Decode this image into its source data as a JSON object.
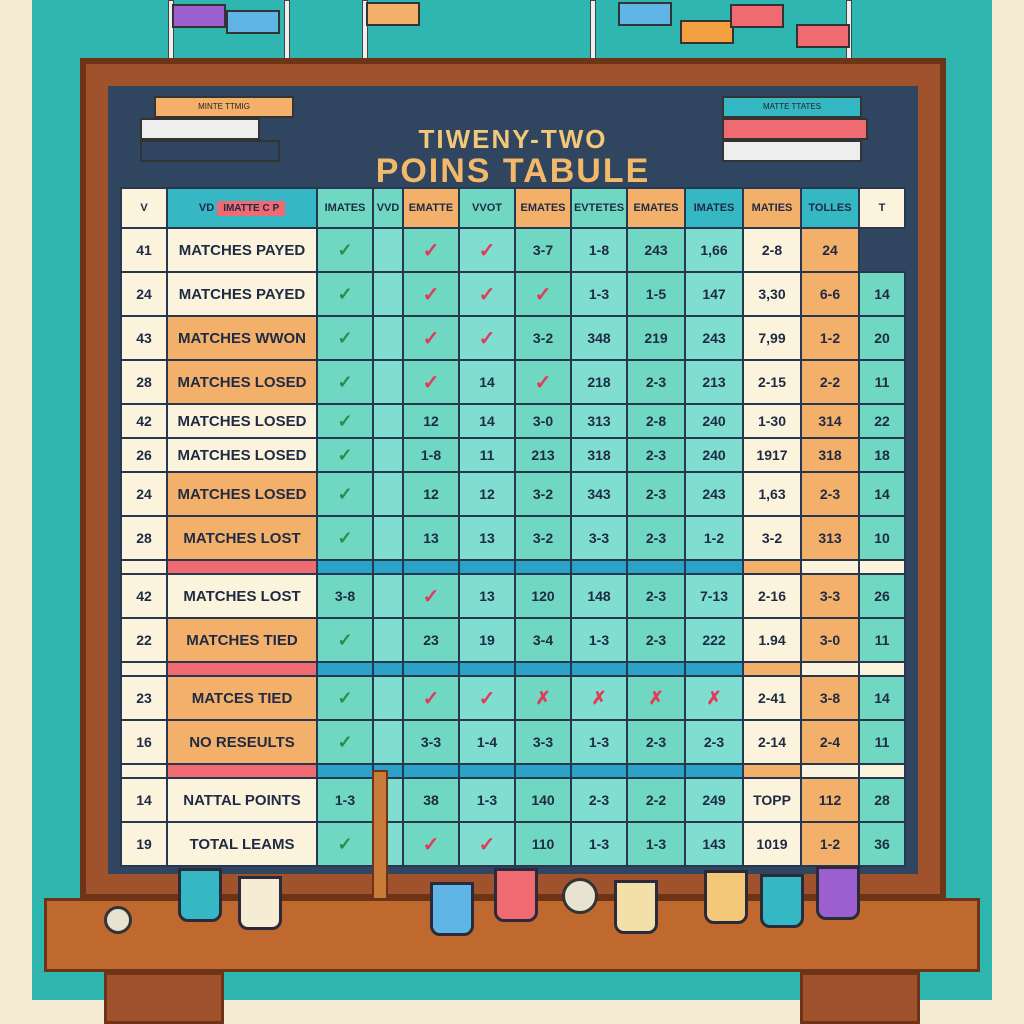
{
  "title": {
    "line1": "TIWENY-TWO",
    "line2": "POINS TABULE"
  },
  "headers": [
    "V",
    "VD",
    "IMATTE C P",
    "IMATES",
    "VVD",
    "EMATTE",
    "VVOT",
    "EMATES",
    "EVTETES",
    "EMATES",
    "IMATES",
    "MATIES",
    "TOLLES",
    "T"
  ],
  "rows": [
    {
      "n": "41",
      "label": "MATCHES PAYED",
      "cells": [
        "✓",
        "",
        "✓",
        "✓",
        "3-7",
        "1-8",
        "243",
        "1,66",
        "2-8",
        "24"
      ]
    },
    {
      "n": "24",
      "label": "MATCHES PAYED",
      "cells": [
        "✓",
        "",
        "✓",
        "✓",
        "✓",
        "1-3",
        "1-5",
        "147",
        "3,30",
        "6-6",
        "14"
      ]
    },
    {
      "n": "43",
      "label": "MATCHES WWON",
      "cells": [
        "✓",
        "",
        "✓",
        "✓",
        "3-2",
        "348",
        "219",
        "243",
        "7,99",
        "1-2",
        "20"
      ]
    },
    {
      "n": "28",
      "label": "MATCHES LOSED",
      "cells": [
        "✓",
        "",
        "✓",
        "14",
        "✓",
        "218",
        "2-3",
        "213",
        "2-15",
        "2-2",
        "11"
      ]
    },
    {
      "n": "42",
      "label": "MATCHES LOSED",
      "cells": [
        "✓",
        "",
        "12",
        "14",
        "3-0",
        "313",
        "2-8",
        "240",
        "1-30",
        "314",
        "22"
      ]
    },
    {
      "n": "26",
      "label": "MATCHES LOSED",
      "cells": [
        "✓",
        "",
        "1-8",
        "11",
        "213",
        "318",
        "2-3",
        "240",
        "1917",
        "318",
        "18"
      ]
    },
    {
      "n": "24",
      "label": "MATCHES LOSED",
      "cells": [
        "✓",
        "",
        "12",
        "12",
        "3-2",
        "343",
        "2-3",
        "243",
        "1,63",
        "2-3",
        "14"
      ]
    },
    {
      "n": "28",
      "label": "MATCHES LOST",
      "cells": [
        "✓",
        "",
        "13",
        "13",
        "3-2",
        "3-3",
        "2-3",
        "1-2",
        "3-2",
        "313",
        "10"
      ]
    },
    {
      "n": "42",
      "label": "MATCHES LOST",
      "cells": [
        "3-8",
        "",
        "✓",
        "13",
        "120",
        "148",
        "2-3",
        "7-13",
        "2-16",
        "3-3",
        "26"
      ]
    },
    {
      "n": "22",
      "label": "MATCHES TIED",
      "cells": [
        "✓",
        "",
        "23",
        "19",
        "3-4",
        "1-3",
        "2-3",
        "222",
        "1.94",
        "3-0",
        "11"
      ]
    },
    {
      "n": "23",
      "label": "MATCES TIED",
      "cells": [
        "✓",
        "",
        "✓",
        "✓",
        "✗",
        "✗",
        "✗",
        "✗",
        "2-41",
        "3-8",
        "14"
      ]
    },
    {
      "n": "16",
      "label": "NO RESEULTS",
      "cells": [
        "✓",
        "",
        "3-3",
        "1-4",
        "3-3",
        "1-3",
        "2-3",
        "2-3",
        "2-14",
        "2-4",
        "11"
      ]
    },
    {
      "n": "14",
      "label": "NATTAL POINTS",
      "cells": [
        "1-3",
        "",
        "38",
        "1-3",
        "140",
        "2-3",
        "2-2",
        "249",
        "TOPP",
        "112",
        "28"
      ]
    },
    {
      "n": "19",
      "label": "TOTAL LEAMS",
      "cells": [
        "✓",
        "",
        "✓",
        "✓",
        "110",
        "1-3",
        "1-3",
        "143",
        "1019",
        "1-2",
        "36"
      ]
    }
  ],
  "books_left": {
    "label": "MINTE TTMIG"
  },
  "books_right": {
    "label": "MATTE TTATES"
  },
  "colors": {
    "board": "#2f4560",
    "frame": "#a0522d",
    "teal": "#2fb6b0",
    "green": "#6fd7c2",
    "orange": "#f3b06a",
    "red": "#f06a72"
  }
}
